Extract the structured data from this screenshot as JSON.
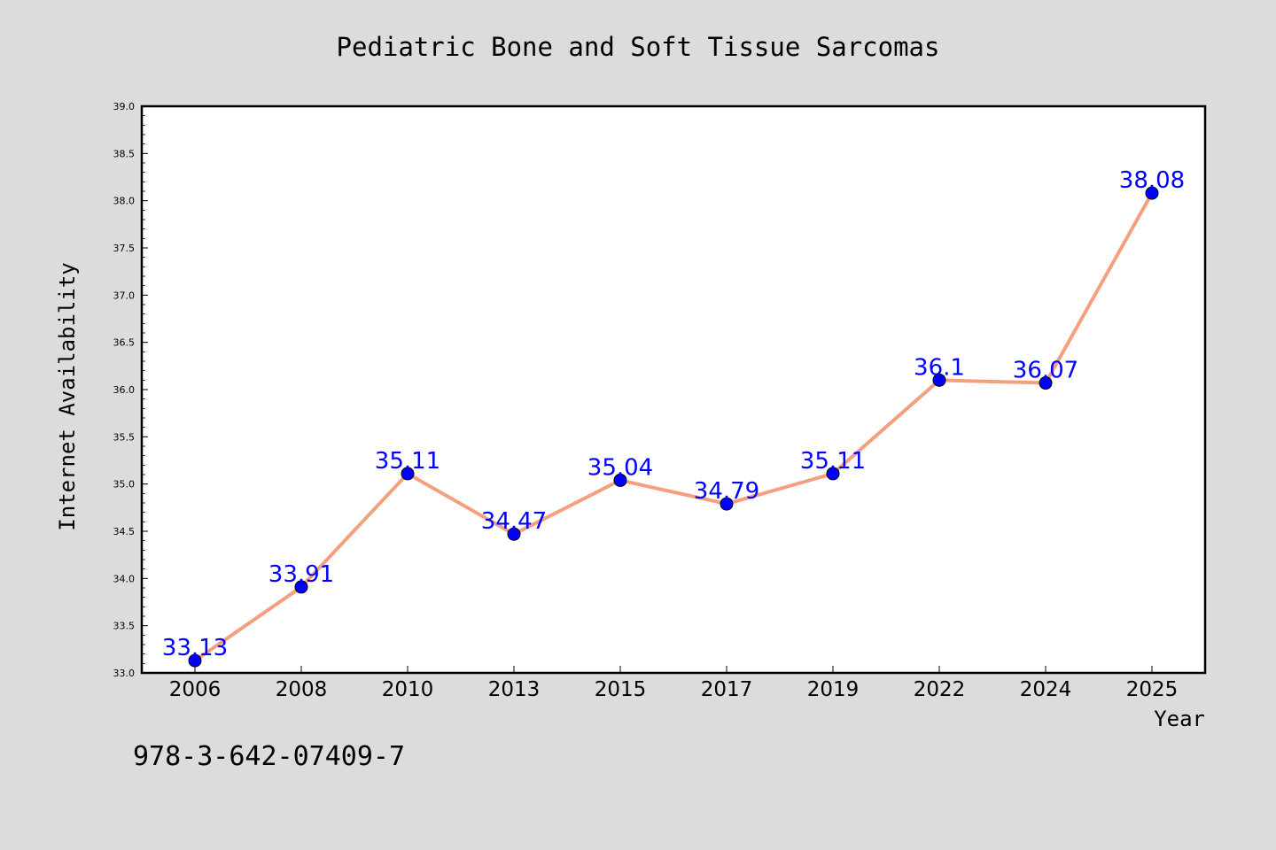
{
  "chart_data": {
    "type": "line",
    "title": "Pediatric Bone and Soft Tissue Sarcomas",
    "xlabel": "Year",
    "ylabel": "Internet Availability",
    "categories": [
      "2006",
      "2008",
      "2010",
      "2013",
      "2015",
      "2017",
      "2019",
      "2022",
      "2024",
      "2025"
    ],
    "values": [
      33.13,
      33.91,
      35.11,
      34.47,
      35.04,
      34.79,
      35.11,
      36.1,
      36.07,
      38.08
    ],
    "data_labels": [
      "33.13",
      "33.91",
      "35.11",
      "34.47",
      "35.04",
      "34.79",
      "35.11",
      "36.1",
      "36.07",
      "38.08"
    ],
    "ylim": [
      33.0,
      39.0
    ],
    "yticks": [
      "33.0",
      "33.5",
      "34.0",
      "34.5",
      "35.0",
      "35.5",
      "36.0",
      "36.5",
      "37.0",
      "37.5",
      "38.0",
      "38.5",
      "39.0"
    ],
    "grid": false,
    "line_color": "#f4a07e",
    "marker_color": "#0000ff",
    "label_color": "#0000ff"
  },
  "footer": {
    "isbn": "978-3-642-07409-7"
  }
}
